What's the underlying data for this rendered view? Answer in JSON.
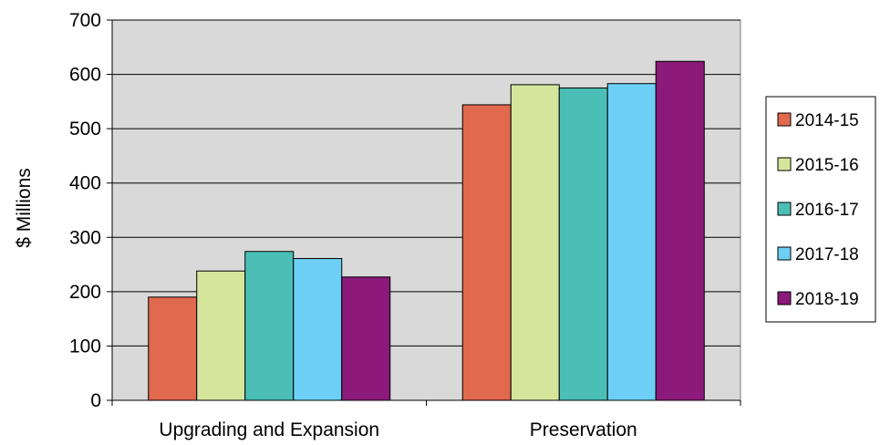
{
  "chart_data": {
    "type": "bar",
    "categories": [
      "Upgrading and Expansion",
      "Preservation"
    ],
    "series": [
      {
        "name": "2014-15",
        "values": [
          190,
          544
        ],
        "color": "#e0694e"
      },
      {
        "name": "2015-16",
        "values": [
          238,
          581
        ],
        "color": "#d6e59c"
      },
      {
        "name": "2016-17",
        "values": [
          274,
          575
        ],
        "color": "#4bbfb6"
      },
      {
        "name": "2017-18",
        "values": [
          261,
          583
        ],
        "color": "#6dcff6"
      },
      {
        "name": "2018-19",
        "values": [
          227,
          624
        ],
        "color": "#8b1a7a"
      }
    ],
    "title": "",
    "xlabel": "",
    "ylabel": "$ Millions",
    "ylim": [
      0,
      700
    ],
    "yticks": [
      "0",
      "100",
      "200",
      "300",
      "400",
      "500",
      "600",
      "700"
    ],
    "grid": true,
    "plot_background": "#d9d9d9",
    "legend_position": "right"
  }
}
